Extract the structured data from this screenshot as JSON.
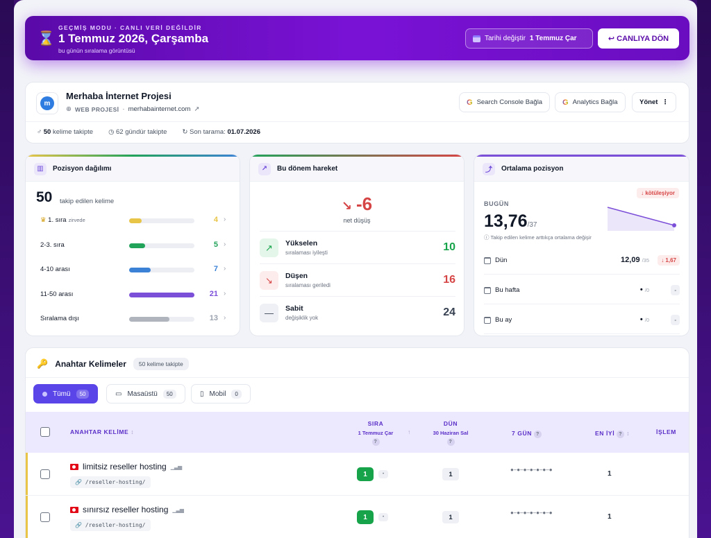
{
  "banner": {
    "mode": "GEÇMİŞ MODU · CANLI VERİ DEĞİLDİR",
    "date": "1 Temmuz 2026, Çarşamba",
    "subtitle": "bu günün sıralama görüntüsü",
    "change_date_label": "Tarihi değiştir",
    "change_date_value": "1 Temmuz Çar",
    "live_button": "↩ CANLIYA DÖN"
  },
  "project": {
    "logo_letter": "m",
    "name": "Merhaba İnternet Projesi",
    "type": "WEB PROJESİ",
    "domain": "merhabainternet.com",
    "search_console_button": "Search Console Bağla",
    "analytics_button": "Analytics Bağla",
    "manage_button": "Yönet",
    "stats": {
      "keywords_count": "50",
      "keywords_label": "kelime takipte",
      "days_tracked": "62 gündür takipte",
      "last_scan_label": "Son tarama:",
      "last_scan_value": "01.07.2026"
    }
  },
  "distribution": {
    "title": "Pozisyon dağılımı",
    "total": "50",
    "total_label": "takip edilen kelime",
    "rows": [
      {
        "label": "1. sıra",
        "tag": "zirvede",
        "value": "4",
        "fraction": 0.19,
        "color": "#e8c547"
      },
      {
        "label": "2-3. sıra",
        "tag": "",
        "value": "5",
        "fraction": 0.24,
        "color": "#22a35a"
      },
      {
        "label": "4-10 arası",
        "tag": "",
        "value": "7",
        "fraction": 0.33,
        "color": "#3b82d6"
      },
      {
        "label": "11-50 arası",
        "tag": "",
        "value": "21",
        "fraction": 1.0,
        "color": "#7c4fd8"
      },
      {
        "label": "Sıralama dışı",
        "tag": "",
        "value": "13",
        "fraction": 0.62,
        "color": "#b0b4bd"
      }
    ]
  },
  "movement": {
    "title": "Bu dönem hareket",
    "net_value": "-6",
    "net_label": "net düşüş",
    "rows": [
      {
        "title": "Yükselen",
        "sub": "sıralaması iyileşti",
        "value": "10",
        "color": "#16a34a",
        "bg": "#e4f6ea",
        "icon": "↗"
      },
      {
        "title": "Düşen",
        "sub": "sıralaması geriledi",
        "value": "16",
        "color": "#d64545",
        "bg": "#fdecec",
        "icon": "↘"
      },
      {
        "title": "Sabit",
        "sub": "değişiklik yok",
        "value": "24",
        "color": "#374151",
        "bg": "#eef0f5",
        "icon": "—"
      }
    ]
  },
  "average": {
    "title": "Ortalama pozisyon",
    "badge": "↓ kötüleşiyor",
    "today_label": "BUGÜN",
    "today_value": "13,76",
    "today_total": "/37",
    "note": "Takip edilen kelime arttıkça ortalama değişir",
    "rows": [
      {
        "label": "Dün",
        "value": "12,09",
        "total": "/35",
        "delta": "↓ 1,67"
      },
      {
        "label": "Bu hafta",
        "value": "•",
        "total": "/0",
        "delta": "-"
      },
      {
        "label": "Bu ay",
        "value": "•",
        "total": "/0",
        "delta": "-"
      }
    ]
  },
  "keywords": {
    "title": "Anahtar Kelimeler",
    "count_pill": "50 kelime takipte",
    "tabs": [
      {
        "label": "Tümü",
        "count": "50"
      },
      {
        "label": "Masaüstü",
        "count": "50"
      },
      {
        "label": "Mobil",
        "count": "0"
      }
    ],
    "columns": {
      "keyword": "ANAHTAR KELİME",
      "rank": "SIRA",
      "rank_sub": "1 Temmuz Çar",
      "prev": "DÜN",
      "prev_sub": "30 Haziran Sal",
      "week": "7 GÜN",
      "best": "EN İYİ",
      "action": "İŞLEM"
    },
    "rows": [
      {
        "keyword": "limitsiz reseller hosting",
        "url": "/reseller-hosting/",
        "rank": "1",
        "rank_change": "•",
        "prev": "1",
        "spark": "●–●–●–●–●–●–●",
        "best": "1"
      },
      {
        "keyword": "sınırsız reseller hosting",
        "url": "/reseller-hosting/",
        "rank": "1",
        "rank_change": "•",
        "prev": "1",
        "spark": "●–●–●–●–●–●–●",
        "best": "1"
      }
    ]
  }
}
